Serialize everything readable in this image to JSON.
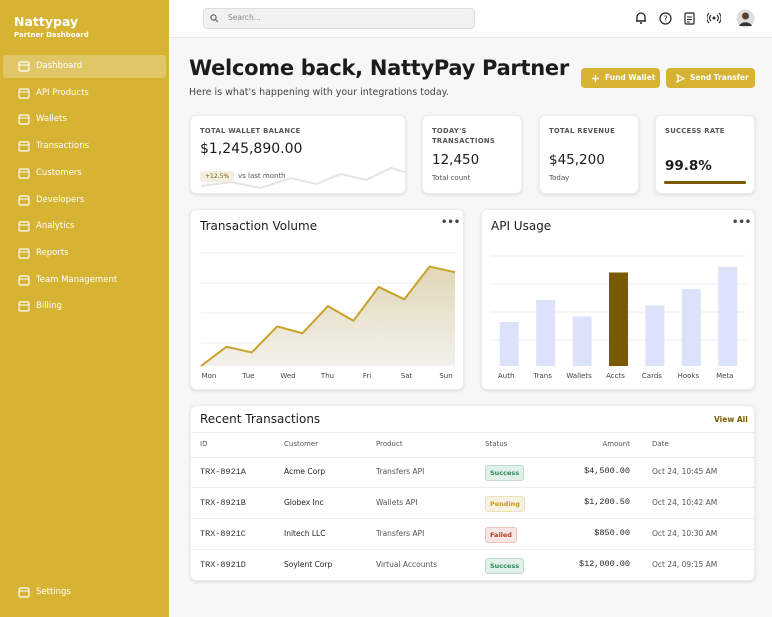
{
  "sidebar": {
    "brand": "Nattypay",
    "subtitle": "Partner Dashboard",
    "nav": [
      "Dashboard",
      "API Products",
      "Wallets",
      "Transactions",
      "Customers",
      "Developers",
      "Analytics",
      "Reports",
      "Team Management",
      "Billing"
    ],
    "active_index": 0,
    "settings": "Settings"
  },
  "topbar": {
    "search_placeholder": "Search..."
  },
  "header": {
    "title": "Welcome back, NattyPay Partner",
    "subtitle": "Here is what's happening with your integrations today.",
    "buttons": [
      "Fund Wallet",
      "Send Transfer"
    ]
  },
  "stats": [
    {
      "label": "TOTAL WALLET BALANCE",
      "value": "$1,245,890.00",
      "badge": "+12.5%",
      "note": "vs last month"
    },
    {
      "label": "TODAY'S TRANSACTIONS",
      "value": "12,450",
      "note": "Total count"
    },
    {
      "label": "TOTAL REVENUE",
      "value": "$45,200",
      "note": "Today"
    },
    {
      "label": "SUCCESS RATE",
      "value": "99.8%",
      "progress": 99.8,
      "progress_range": [
        0,
        100
      ]
    }
  ],
  "chart_data": [
    {
      "type": "line",
      "title": "Transaction Volume",
      "x_labels": [
        "Mon",
        "Tue",
        "Wed",
        "Thu",
        "Fri",
        "Sat",
        "Sun"
      ],
      "values": [
        0,
        17,
        12,
        35,
        29,
        53,
        40,
        70,
        59,
        88,
        83
      ],
      "ylim": [
        0,
        100
      ],
      "color": "#c9a227"
    },
    {
      "type": "bar",
      "title": "API Usage",
      "categories": [
        "Auth",
        "Trans",
        "Wallets",
        "Accts",
        "Cards",
        "Hooks",
        "Meta"
      ],
      "values": [
        40,
        60,
        45,
        85,
        55,
        70,
        90
      ],
      "colors": [
        "#dde2fb",
        "#dde2fb",
        "#dde2fb",
        "#7a5a00",
        "#dde2fb",
        "#dde2fb",
        "#dde2fb"
      ],
      "ylim": [
        0,
        100
      ]
    }
  ],
  "transactions": {
    "title": "Recent Transactions",
    "link": "View All",
    "columns": [
      "ID",
      "Customer",
      "Product",
      "Status",
      "Amount",
      "Date"
    ],
    "rows": [
      [
        "TRX-8921A",
        "Acme Corp",
        "Transfers API",
        "Success",
        "$4,500.00",
        "Oct 24, 10:45 AM"
      ],
      [
        "TRX-8921B",
        "Globex Inc",
        "Wallets API",
        "Pending",
        "$1,200.50",
        "Oct 24, 10:42 AM"
      ],
      [
        "TRX-8921C",
        "Initech LLC",
        "Transfers API",
        "Failed",
        "$850.00",
        "Oct 24, 10:30 AM"
      ],
      [
        "TRX-8921D",
        "Soylent Corp",
        "Virtual Accounts",
        "Success",
        "$12,000.00",
        "Oct 24, 09:15 AM"
      ]
    ],
    "status_colors": [
      "#2e8b57",
      "#c99a17",
      "#c0392b",
      "#2e8b57"
    ]
  }
}
